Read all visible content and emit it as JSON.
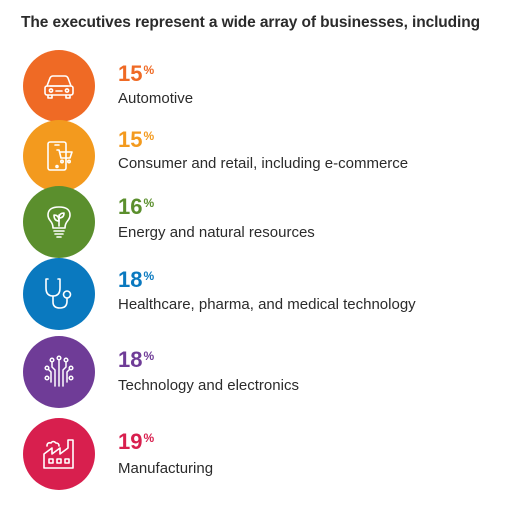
{
  "chart_data": {
    "type": "table",
    "title": "The executives represent a wide array of businesses, including",
    "unit": "%",
    "categories": [
      "Automotive",
      "Consumer and retail, including e-commerce",
      "Energy and natural resources",
      "Healthcare, pharma, and medical technology",
      "Technology and electronics",
      "Manufacturing"
    ],
    "values": [
      15,
      15,
      16,
      18,
      18,
      19
    ]
  },
  "rows": [
    {
      "value": "15",
      "unit": "%",
      "label": "Automotive",
      "color": "#ef6a25",
      "icon": "car-icon"
    },
    {
      "value": "15",
      "unit": "%",
      "label": "Consumer and retail, including e-commerce",
      "color": "#f39a1e",
      "icon": "tablet-cart-icon"
    },
    {
      "value": "16",
      "unit": "%",
      "label": "Energy and natural resources",
      "color": "#5b8f2d",
      "icon": "lightbulb-leaf-icon"
    },
    {
      "value": "18",
      "unit": "%",
      "label": "Healthcare, pharma, and medical technology",
      "color": "#0a79bf",
      "icon": "stethoscope-icon"
    },
    {
      "value": "18",
      "unit": "%",
      "label": "Technology and electronics",
      "color": "#6f3c97",
      "icon": "circuit-icon"
    },
    {
      "value": "19",
      "unit": "%",
      "label": "Manufacturing",
      "color": "#d81f4e",
      "icon": "factory-icon"
    }
  ]
}
